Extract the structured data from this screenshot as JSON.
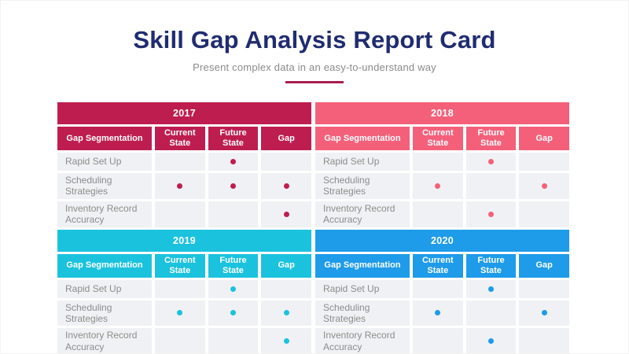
{
  "page": {
    "title": "Skill Gap Analysis Report Card",
    "subtitle": "Present complex data in an easy-to-understand way"
  },
  "colors": {
    "title_navy": "#202C70",
    "subtitle_gray": "#8A8A8A",
    "divider_crimson": "#A91E50",
    "row_bg": "#F0F1F4",
    "row_label_gray": "#8C8C8C"
  },
  "chart_data": {
    "type": "table",
    "title": "Skill Gap Analysis Report Card",
    "subtitle": "Present complex data in an easy-to-understand way",
    "columns": [
      "Gap Segmentation",
      "Current State",
      "Future State",
      "Gap"
    ],
    "tables": [
      {
        "year": "2017",
        "color": "#BE1E4F",
        "rows": [
          {
            "label": "Rapid Set Up",
            "current_state": false,
            "future_state": true,
            "gap": false
          },
          {
            "label": "Scheduling Strategies",
            "current_state": true,
            "future_state": true,
            "gap": true
          },
          {
            "label": "Inventory Record Accuracy",
            "current_state": false,
            "future_state": false,
            "gap": true
          }
        ]
      },
      {
        "year": "2018",
        "color": "#F4607A",
        "rows": [
          {
            "label": "Rapid Set Up",
            "current_state": false,
            "future_state": true,
            "gap": false
          },
          {
            "label": "Scheduling Strategies",
            "current_state": true,
            "future_state": false,
            "gap": true
          },
          {
            "label": "Inventory Record Accuracy",
            "current_state": false,
            "future_state": true,
            "gap": false
          }
        ]
      },
      {
        "year": "2019",
        "color": "#1BC2DE",
        "rows": [
          {
            "label": "Rapid Set Up",
            "current_state": false,
            "future_state": true,
            "gap": false
          },
          {
            "label": "Scheduling Strategies",
            "current_state": true,
            "future_state": true,
            "gap": true
          },
          {
            "label": "Inventory Record Accuracy",
            "current_state": false,
            "future_state": false,
            "gap": true
          }
        ]
      },
      {
        "year": "2020",
        "color": "#1E9BE9",
        "rows": [
          {
            "label": "Rapid Set Up",
            "current_state": false,
            "future_state": true,
            "gap": false
          },
          {
            "label": "Scheduling Strategies",
            "current_state": true,
            "future_state": false,
            "gap": true
          },
          {
            "label": "Inventory Record Accuracy",
            "current_state": false,
            "future_state": true,
            "gap": false
          }
        ]
      }
    ]
  }
}
